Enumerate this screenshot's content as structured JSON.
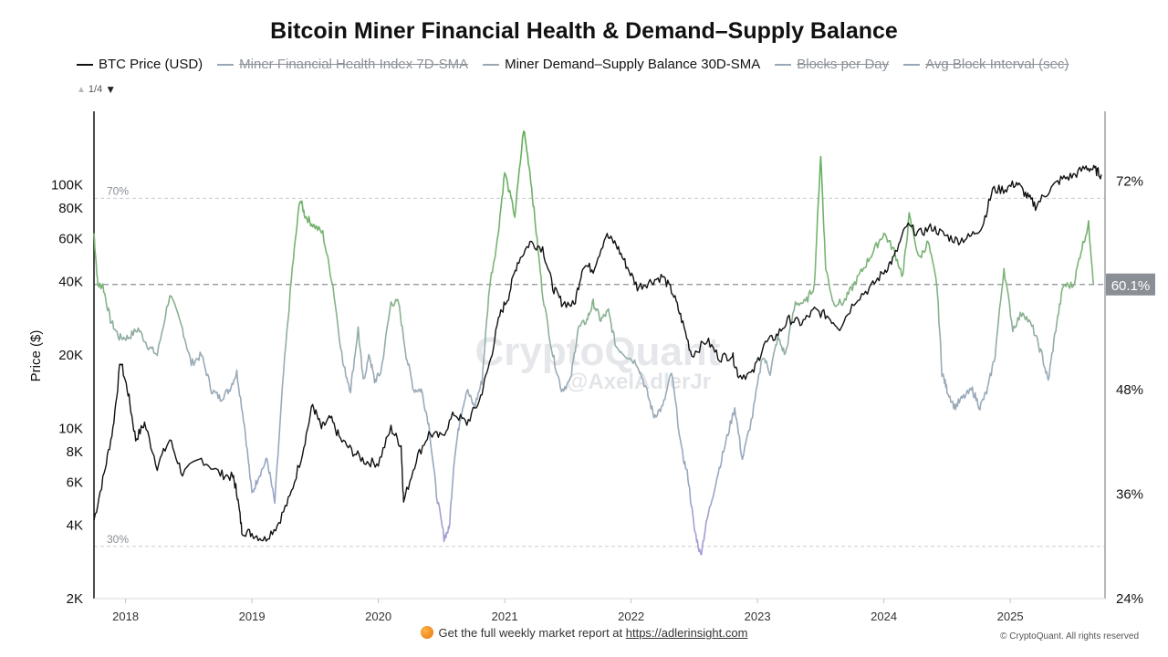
{
  "header": {
    "title": "Bitcoin Miner Financial Health & Demand–Supply Balance",
    "pager": {
      "up": "▲",
      "text": "1/4",
      "down": "▼"
    }
  },
  "legend": [
    {
      "label": "BTC Price (USD)",
      "color": "#111111",
      "active": true
    },
    {
      "label": "Miner Financial Health Index 7D-SMA",
      "color": "#9aa7b5",
      "active": false
    },
    {
      "label": "Miner Demand–Supply Balance 30D-SMA",
      "color": "#9aa7b5",
      "active": true
    },
    {
      "label": "Blocks per Day",
      "color": "#9aa7b5",
      "active": false
    },
    {
      "label": "Avg Block Interval (sec)",
      "color": "#9aa7b5",
      "active": false
    }
  ],
  "watermark": {
    "brand": "CryptoQuant",
    "handle": "@AxelAdlerJr"
  },
  "footer": {
    "text": "Get the full weekly market report at ",
    "link": "https://adlerinsight.com",
    "copyright": "© CryptoQuant. All rights reserved"
  },
  "chart_data": {
    "type": "line",
    "title": "Bitcoin Miner Financial Health & Demand–Supply Balance",
    "y_left": {
      "label": "Price ($)",
      "scale": "log",
      "range": [
        2000,
        200000
      ],
      "ticks": [
        2000,
        4000,
        6000,
        8000,
        10000,
        20000,
        40000,
        60000,
        80000,
        100000
      ],
      "tick_labels": [
        "2K",
        "4K",
        "6K",
        "8K",
        "10K",
        "20K",
        "40K",
        "60K",
        "80K",
        "100K"
      ]
    },
    "y_right": {
      "range": [
        24,
        80
      ],
      "ticks": [
        24,
        36,
        48,
        72
      ],
      "tick_labels": [
        "24%",
        "36%",
        "48%",
        "72%"
      ],
      "current_value_label": "60.1%",
      "current_value": 60.1
    },
    "x": {
      "ticks": [
        2018,
        2019,
        2020,
        2021,
        2022,
        2023,
        2024,
        2025
      ],
      "tick_labels": [
        "2018",
        "2019",
        "2020",
        "2021",
        "2022",
        "2023",
        "2024",
        "2025"
      ],
      "range": [
        2017.75,
        2025.75
      ]
    },
    "reference_lines": [
      {
        "label": "70%",
        "value": 70
      },
      {
        "label": "30%",
        "value": 30
      }
    ],
    "current_line": 60.1,
    "series": [
      {
        "name": "BTC Price (USD)",
        "axis": "left",
        "color": "#111111",
        "points": [
          [
            2017.75,
            4200
          ],
          [
            2017.83,
            6500
          ],
          [
            2017.9,
            10000
          ],
          [
            2017.96,
            19000
          ],
          [
            2018.02,
            14000
          ],
          [
            2018.08,
            9000
          ],
          [
            2018.15,
            10500
          ],
          [
            2018.25,
            7000
          ],
          [
            2018.35,
            9000
          ],
          [
            2018.45,
            6500
          ],
          [
            2018.6,
            7500
          ],
          [
            2018.75,
            6500
          ],
          [
            2018.85,
            6300
          ],
          [
            2018.88,
            5500
          ],
          [
            2018.92,
            3800
          ],
          [
            2019.0,
            3700
          ],
          [
            2019.1,
            3500
          ],
          [
            2019.2,
            4000
          ],
          [
            2019.3,
            5200
          ],
          [
            2019.4,
            8000
          ],
          [
            2019.48,
            12500
          ],
          [
            2019.55,
            10000
          ],
          [
            2019.62,
            11000
          ],
          [
            2019.7,
            9000
          ],
          [
            2019.8,
            8000
          ],
          [
            2019.9,
            7300
          ],
          [
            2020.0,
            7200
          ],
          [
            2020.1,
            10000
          ],
          [
            2020.18,
            8500
          ],
          [
            2020.2,
            5000
          ],
          [
            2020.3,
            7500
          ],
          [
            2020.4,
            9500
          ],
          [
            2020.5,
            9200
          ],
          [
            2020.6,
            11500
          ],
          [
            2020.7,
            10500
          ],
          [
            2020.8,
            13000
          ],
          [
            2020.88,
            18500
          ],
          [
            2020.96,
            29000
          ],
          [
            2021.03,
            35000
          ],
          [
            2021.1,
            48000
          ],
          [
            2021.2,
            58000
          ],
          [
            2021.3,
            55000
          ],
          [
            2021.38,
            38000
          ],
          [
            2021.45,
            33000
          ],
          [
            2021.55,
            32000
          ],
          [
            2021.62,
            47000
          ],
          [
            2021.7,
            45000
          ],
          [
            2021.8,
            62000
          ],
          [
            2021.88,
            57000
          ],
          [
            2021.96,
            47000
          ],
          [
            2022.05,
            38000
          ],
          [
            2022.15,
            40000
          ],
          [
            2022.25,
            42000
          ],
          [
            2022.33,
            36000
          ],
          [
            2022.4,
            28000
          ],
          [
            2022.48,
            20000
          ],
          [
            2022.6,
            23000
          ],
          [
            2022.7,
            19500
          ],
          [
            2022.8,
            20000
          ],
          [
            2022.85,
            16500
          ],
          [
            2022.96,
            16700
          ],
          [
            2023.05,
            22000
          ],
          [
            2023.15,
            24000
          ],
          [
            2023.25,
            28000
          ],
          [
            2023.35,
            27000
          ],
          [
            2023.45,
            30500
          ],
          [
            2023.55,
            29000
          ],
          [
            2023.65,
            26000
          ],
          [
            2023.78,
            34000
          ],
          [
            2023.9,
            38000
          ],
          [
            2024.0,
            44000
          ],
          [
            2024.08,
            50000
          ],
          [
            2024.18,
            68000
          ],
          [
            2024.28,
            63000
          ],
          [
            2024.38,
            67000
          ],
          [
            2024.48,
            62000
          ],
          [
            2024.58,
            59000
          ],
          [
            2024.68,
            61000
          ],
          [
            2024.78,
            68000
          ],
          [
            2024.86,
            95000
          ],
          [
            2024.96,
            96000
          ],
          [
            2025.05,
            102000
          ],
          [
            2025.13,
            90000
          ],
          [
            2025.2,
            82000
          ],
          [
            2025.3,
            94000
          ],
          [
            2025.4,
            105000
          ],
          [
            2025.5,
            109000
          ],
          [
            2025.6,
            118000
          ],
          [
            2025.67,
            115000
          ],
          [
            2025.72,
            110000
          ]
        ]
      },
      {
        "name": "Miner Demand–Supply Balance 30D-SMA",
        "axis": "right",
        "points": [
          [
            2017.75,
            66
          ],
          [
            2017.78,
            60
          ],
          [
            2017.82,
            60
          ],
          [
            2017.88,
            56
          ],
          [
            2017.95,
            54
          ],
          [
            2018.02,
            54
          ],
          [
            2018.1,
            55
          ],
          [
            2018.18,
            53
          ],
          [
            2018.25,
            52
          ],
          [
            2018.35,
            59
          ],
          [
            2018.45,
            55
          ],
          [
            2018.52,
            51
          ],
          [
            2018.6,
            52
          ],
          [
            2018.68,
            48
          ],
          [
            2018.75,
            47
          ],
          [
            2018.82,
            48
          ],
          [
            2018.88,
            50
          ],
          [
            2018.94,
            44
          ],
          [
            2019.0,
            36
          ],
          [
            2019.05,
            38
          ],
          [
            2019.12,
            40
          ],
          [
            2019.18,
            35
          ],
          [
            2019.25,
            50
          ],
          [
            2019.32,
            62
          ],
          [
            2019.38,
            70
          ],
          [
            2019.42,
            68
          ],
          [
            2019.48,
            67
          ],
          [
            2019.56,
            66
          ],
          [
            2019.64,
            60
          ],
          [
            2019.72,
            51
          ],
          [
            2019.78,
            48
          ],
          [
            2019.84,
            55
          ],
          [
            2019.88,
            49
          ],
          [
            2019.93,
            52
          ],
          [
            2019.97,
            49
          ],
          [
            2020.02,
            50
          ],
          [
            2020.1,
            58
          ],
          [
            2020.16,
            58
          ],
          [
            2020.22,
            52
          ],
          [
            2020.28,
            48
          ],
          [
            2020.34,
            48
          ],
          [
            2020.4,
            44
          ],
          [
            2020.46,
            36
          ],
          [
            2020.52,
            31
          ],
          [
            2020.56,
            32
          ],
          [
            2020.6,
            40
          ],
          [
            2020.65,
            45
          ],
          [
            2020.7,
            48
          ],
          [
            2020.76,
            46
          ],
          [
            2020.82,
            49
          ],
          [
            2020.88,
            60
          ],
          [
            2020.94,
            65
          ],
          [
            2021.0,
            73
          ],
          [
            2021.08,
            68
          ],
          [
            2021.15,
            78
          ],
          [
            2021.2,
            73
          ],
          [
            2021.25,
            66
          ],
          [
            2021.3,
            59
          ],
          [
            2021.38,
            52
          ],
          [
            2021.45,
            48
          ],
          [
            2021.52,
            49
          ],
          [
            2021.58,
            55
          ],
          [
            2021.65,
            56
          ],
          [
            2021.7,
            58
          ],
          [
            2021.76,
            56
          ],
          [
            2021.82,
            57
          ],
          [
            2021.88,
            53
          ],
          [
            2021.96,
            52
          ],
          [
            2022.05,
            51
          ],
          [
            2022.12,
            48
          ],
          [
            2022.18,
            45
          ],
          [
            2022.25,
            46
          ],
          [
            2022.32,
            50
          ],
          [
            2022.4,
            41
          ],
          [
            2022.45,
            38
          ],
          [
            2022.5,
            32
          ],
          [
            2022.55,
            29
          ],
          [
            2022.6,
            33
          ],
          [
            2022.68,
            38
          ],
          [
            2022.75,
            42
          ],
          [
            2022.82,
            46
          ],
          [
            2022.88,
            40
          ],
          [
            2022.96,
            45
          ],
          [
            2023.04,
            52
          ],
          [
            2023.1,
            50
          ],
          [
            2023.16,
            54
          ],
          [
            2023.22,
            52
          ],
          [
            2023.3,
            58
          ],
          [
            2023.38,
            58
          ],
          [
            2023.45,
            60
          ],
          [
            2023.5,
            75
          ],
          [
            2023.54,
            62
          ],
          [
            2023.6,
            58
          ],
          [
            2023.68,
            58
          ],
          [
            2023.76,
            60
          ],
          [
            2023.84,
            62
          ],
          [
            2023.92,
            64
          ],
          [
            2024.0,
            66
          ],
          [
            2024.08,
            64
          ],
          [
            2024.15,
            61
          ],
          [
            2024.2,
            68
          ],
          [
            2024.28,
            63
          ],
          [
            2024.35,
            65
          ],
          [
            2024.42,
            60
          ],
          [
            2024.46,
            50
          ],
          [
            2024.5,
            48
          ],
          [
            2024.56,
            46
          ],
          [
            2024.62,
            47
          ],
          [
            2024.7,
            48
          ],
          [
            2024.76,
            46
          ],
          [
            2024.82,
            48
          ],
          [
            2024.88,
            52
          ],
          [
            2024.95,
            62
          ],
          [
            2025.02,
            55
          ],
          [
            2025.1,
            57
          ],
          [
            2025.18,
            55
          ],
          [
            2025.25,
            52
          ],
          [
            2025.3,
            49
          ],
          [
            2025.36,
            55
          ],
          [
            2025.42,
            60
          ],
          [
            2025.5,
            60
          ],
          [
            2025.56,
            64
          ],
          [
            2025.62,
            67
          ],
          [
            2025.66,
            60.1
          ]
        ]
      }
    ]
  }
}
